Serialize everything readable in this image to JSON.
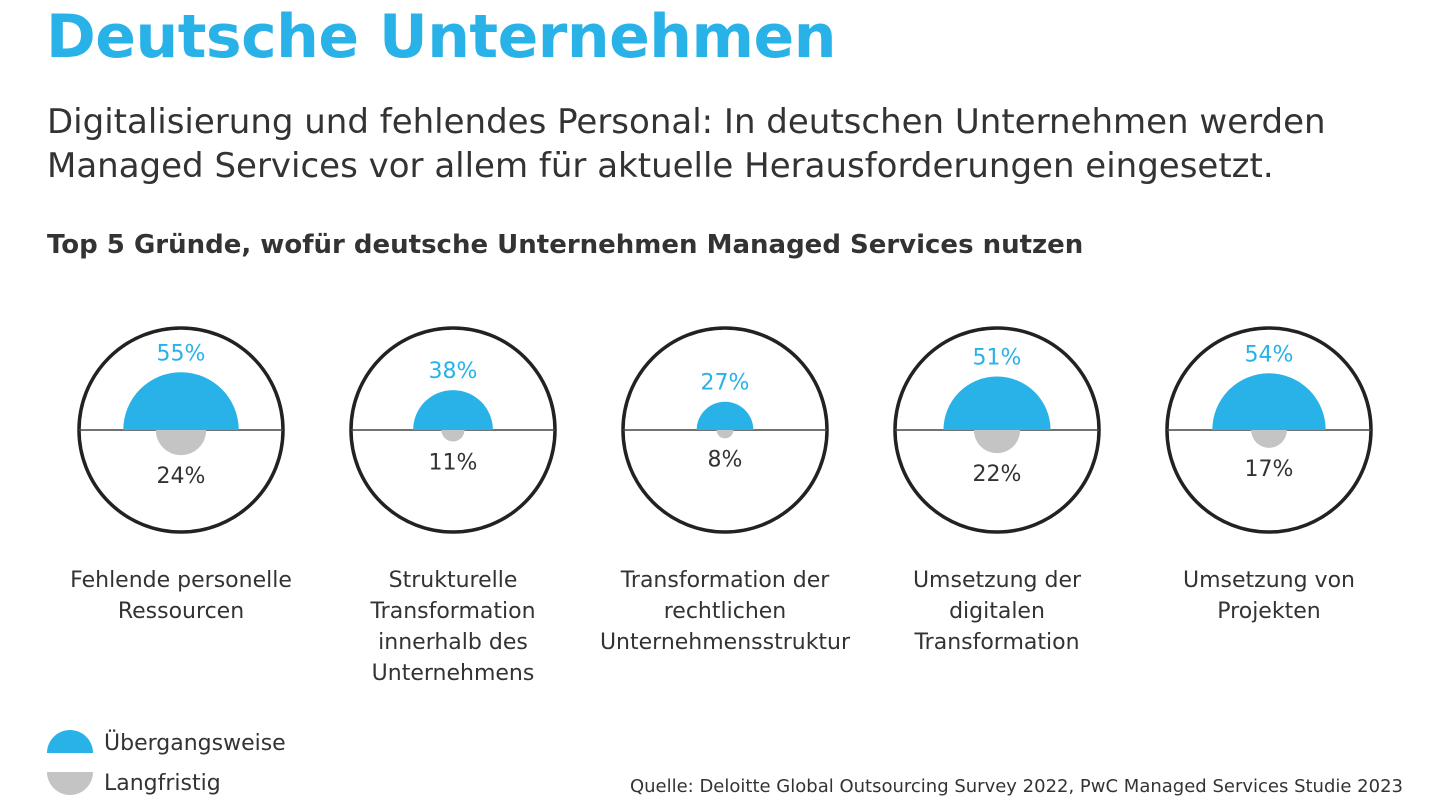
{
  "chart_data": {
    "type": "semicircle",
    "title": "Deutsche Unternehmen",
    "subtitle": "Digitalisierung und fehlendes Personal: In deutschen Unternehmen werden Managed Services vor allem für aktuelle Herausforderungen eingesetzt.",
    "chart_title": "Top 5 Gründe, wofür deutsche Unternehmen Managed Services nutzen",
    "categories": [
      "Fehlende personelle\nRessourcen",
      "Strukturelle\nTransformation\ninnerhalb des\nUnternehmens",
      "Transformation der\nrechtlichen\nUnternehmensstruktur",
      "Umsetzung der\ndigitalen\nTransformation",
      "Umsetzung von\nProjekten"
    ],
    "series": [
      {
        "name": "Übergangsweise",
        "color": "#29b2e8",
        "values": [
          55,
          38,
          27,
          51,
          54
        ],
        "value_labels": [
          "55%",
          "38%",
          "27%",
          "51%",
          "54%"
        ]
      },
      {
        "name": "Langfristig",
        "color": "#c4c4c4",
        "values": [
          24,
          11,
          8,
          22,
          17
        ],
        "value_labels": [
          "24%",
          "11%",
          "8%",
          "22%",
          "17%"
        ]
      }
    ],
    "source": "Quelle: Deloitte Global Outsourcing Survey 2022, PwC Managed Services Studie 2023"
  }
}
